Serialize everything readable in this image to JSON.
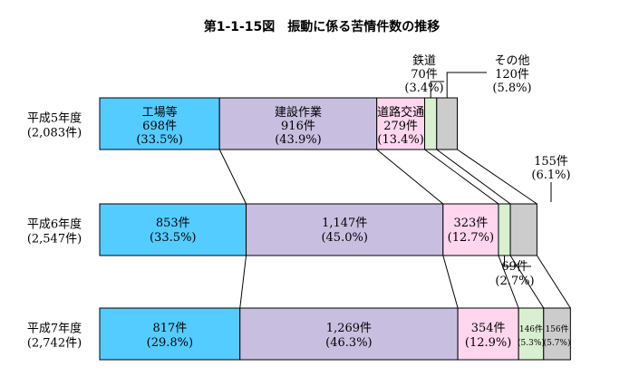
{
  "chart_data": {
    "type": "bar",
    "stacked": true,
    "orientation": "horizontal",
    "title": "第1-1-15図　振動に係る苦情件数の推移",
    "rows": [
      {
        "name": "平成5年度",
        "total": "(2,083件)"
      },
      {
        "name": "平成6年度",
        "total": "(2,547件)"
      },
      {
        "name": "平成7年度",
        "total": "(2,742件)"
      }
    ],
    "series": [
      {
        "name": "工場等",
        "color": "#55ccff",
        "values": [
          698,
          853,
          817
        ],
        "counts": [
          "698件",
          "853件",
          "817件"
        ],
        "percents": [
          "(33.5%)",
          "(33.5%)",
          "(29.8%)"
        ]
      },
      {
        "name": "建設作業",
        "color": "#c8bfe0",
        "values": [
          916,
          1147,
          1269
        ],
        "counts": [
          "916件",
          "1,147件",
          "1,269件"
        ],
        "percents": [
          "(43.9%)",
          "(45.0%)",
          "(46.3%)"
        ]
      },
      {
        "name": "道路交通",
        "color": "#ffd6ee",
        "values": [
          279,
          323,
          354
        ],
        "counts": [
          "279件",
          "323件",
          "354件"
        ],
        "percents": [
          "(13.4%)",
          "(12.7%)",
          "(12.9%)"
        ]
      },
      {
        "name": "鉄道",
        "color": "#d8f0d0",
        "values": [
          70,
          69,
          146
        ],
        "counts": [
          "70件",
          "69件",
          "146件"
        ],
        "percents": [
          "(3.4%)",
          "(2.7%)",
          "(5.3%)"
        ]
      },
      {
        "name": "その他",
        "color": "#cccccc",
        "values": [
          120,
          155,
          156
        ],
        "counts": [
          "120件",
          "155件",
          "156件"
        ],
        "percents": [
          "(5.8%)",
          "(6.1%)",
          "(5.7%)"
        ]
      }
    ]
  }
}
